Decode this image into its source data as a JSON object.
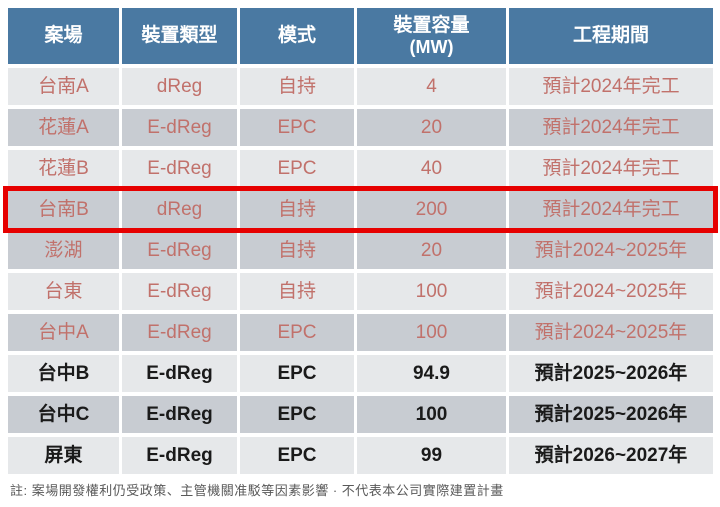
{
  "table": {
    "columns": [
      {
        "label": "案場"
      },
      {
        "label": "裝置類型"
      },
      {
        "label": "模式"
      },
      {
        "label": "裝置容量",
        "sublabel": "(MW)"
      },
      {
        "label": "工程期間"
      }
    ],
    "rows": [
      {
        "site": "台南A",
        "type": "dReg",
        "mode": "自持",
        "capacity": "4",
        "period": "預計2024年完工",
        "shade": "light",
        "text_color": "red",
        "highlighted": false
      },
      {
        "site": "花蓮A",
        "type": "E-dReg",
        "mode": "EPC",
        "capacity": "20",
        "period": "預計2024年完工",
        "shade": "dark",
        "text_color": "red",
        "highlighted": false
      },
      {
        "site": "花蓮B",
        "type": "E-dReg",
        "mode": "EPC",
        "capacity": "40",
        "period": "預計2024年完工",
        "shade": "light",
        "text_color": "red",
        "highlighted": false
      },
      {
        "site": "台南B",
        "type": "dReg",
        "mode": "自持",
        "capacity": "200",
        "period": "預計2024年完工",
        "shade": "dark",
        "text_color": "red",
        "highlighted": true
      },
      {
        "site": "澎湖",
        "type": "E-dReg",
        "mode": "自持",
        "capacity": "20",
        "period": "預計2024~2025年",
        "shade": "dark",
        "text_color": "red",
        "highlighted": false
      },
      {
        "site": "台東",
        "type": "E-dReg",
        "mode": "自持",
        "capacity": "100",
        "period": "預計2024~2025年",
        "shade": "light",
        "text_color": "red",
        "highlighted": false
      },
      {
        "site": "台中A",
        "type": "E-dReg",
        "mode": "EPC",
        "capacity": "100",
        "period": "預計2024~2025年",
        "shade": "dark",
        "text_color": "red",
        "highlighted": false
      },
      {
        "site": "台中B",
        "type": "E-dReg",
        "mode": "EPC",
        "capacity": "94.9",
        "period": "預計2025~2026年",
        "shade": "light",
        "text_color": "black",
        "highlighted": false
      },
      {
        "site": "台中C",
        "type": "E-dReg",
        "mode": "EPC",
        "capacity": "100",
        "period": "預計2025~2026年",
        "shade": "dark",
        "text_color": "black",
        "highlighted": false
      },
      {
        "site": "屏東",
        "type": "E-dReg",
        "mode": "EPC",
        "capacity": "99",
        "period": "預計2026~2027年",
        "shade": "light",
        "text_color": "black",
        "highlighted": false
      }
    ]
  },
  "footnote": "註: 案場開發權利仍受政策、主管機關准駁等因素影響 · 不代表本公司實際建置計畫",
  "colors": {
    "header_bg": "#4A79A2",
    "header_text": "#FFFFFF",
    "row_light": "#E6E8EA",
    "row_dark": "#C8CCD2",
    "text_red": "#C1716B",
    "text_black": "#1A1A1A",
    "highlight_border": "#E60000",
    "footnote_text": "#595959"
  }
}
